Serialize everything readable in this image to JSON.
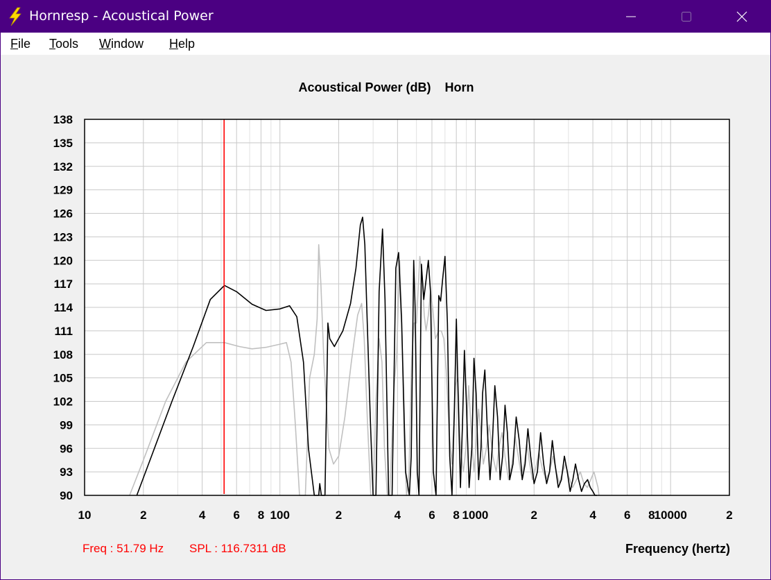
{
  "window": {
    "title": "Hornresp - Acoustical Power",
    "accent_color": "#4b0082",
    "icon": "lightning-bolt-icon"
  },
  "menu": {
    "file": {
      "underline": "F",
      "rest": "ile"
    },
    "tools": {
      "underline": "T",
      "rest": "ools"
    },
    "window": {
      "underline": "W",
      "rest": "indow"
    },
    "help": {
      "underline": "H",
      "rest": "elp"
    }
  },
  "chart_header": "Acoustical Power (dB)    Horn",
  "status": {
    "freq": "Freq : 51.79 Hz",
    "spl": "SPL : 116.7311 dB"
  },
  "x_axis_title": "Frequency (hertz)",
  "chart_data": {
    "type": "line",
    "x_scale": "log",
    "xlim": [
      10,
      20000
    ],
    "ylim": [
      90,
      138
    ],
    "y_ticks": [
      138,
      135,
      132,
      129,
      126,
      123,
      120,
      117,
      114,
      111,
      108,
      105,
      102,
      99,
      96,
      93,
      90
    ],
    "x_tick_labels": [
      {
        "value": 10,
        "label": "10"
      },
      {
        "value": 20,
        "label": "2"
      },
      {
        "value": 40,
        "label": "4"
      },
      {
        "value": 60,
        "label": "6"
      },
      {
        "value": 80,
        "label": "8"
      },
      {
        "value": 100,
        "label": "100"
      },
      {
        "value": 200,
        "label": "2"
      },
      {
        "value": 400,
        "label": "4"
      },
      {
        "value": 600,
        "label": "6"
      },
      {
        "value": 800,
        "label": "8"
      },
      {
        "value": 1000,
        "label": "1000"
      },
      {
        "value": 2000,
        "label": "2"
      },
      {
        "value": 4000,
        "label": "4"
      },
      {
        "value": 6000,
        "label": "6"
      },
      {
        "value": 8000,
        "label": "8"
      },
      {
        "value": 10000,
        "label": "10000"
      },
      {
        "value": 20000,
        "label": "2"
      }
    ],
    "grid": true,
    "cursor_freq": 51.79,
    "cursor_color": "#ff0000",
    "series": [
      {
        "color": "#000000",
        "points": [
          [
            18.5,
            90
          ],
          [
            22,
            95
          ],
          [
            28,
            102
          ],
          [
            36,
            109
          ],
          [
            44,
            115
          ],
          [
            52,
            116.8
          ],
          [
            60,
            116
          ],
          [
            72,
            114.4
          ],
          [
            85,
            113.6
          ],
          [
            100,
            113.8
          ],
          [
            112,
            114.2
          ],
          [
            122,
            112.8
          ],
          [
            132,
            107
          ],
          [
            140,
            96
          ],
          [
            150,
            90
          ],
          [
            158,
            90
          ],
          [
            160,
            91.5
          ],
          [
            163,
            90
          ],
          [
            170,
            90
          ],
          [
            176,
            112
          ],
          [
            180,
            110
          ],
          [
            190,
            109
          ],
          [
            210,
            111
          ],
          [
            230,
            114.5
          ],
          [
            245,
            119
          ],
          [
            258,
            124.5
          ],
          [
            265,
            125.5
          ],
          [
            272,
            122
          ],
          [
            280,
            112
          ],
          [
            290,
            100
          ],
          [
            300,
            90
          ],
          [
            310,
            90
          ],
          [
            322,
            116
          ],
          [
            335,
            124
          ],
          [
            345,
            115
          ],
          [
            360,
            90
          ],
          [
            375,
            90
          ],
          [
            392,
            119
          ],
          [
            405,
            121
          ],
          [
            420,
            112
          ],
          [
            440,
            93
          ],
          [
            460,
            90
          ],
          [
            470,
            95
          ],
          [
            484,
            120
          ],
          [
            492,
            114
          ],
          [
            505,
            93
          ],
          [
            515,
            90
          ],
          [
            530,
            119.5
          ],
          [
            545,
            115
          ],
          [
            560,
            117.5
          ],
          [
            575,
            120
          ],
          [
            590,
            116
          ],
          [
            610,
            93
          ],
          [
            630,
            90
          ],
          [
            650,
            115.5
          ],
          [
            665,
            114.8
          ],
          [
            680,
            117.5
          ],
          [
            700,
            120.5
          ],
          [
            720,
            112
          ],
          [
            740,
            95
          ],
          [
            760,
            90
          ],
          [
            780,
            100
          ],
          [
            800,
            112.5
          ],
          [
            815,
            104
          ],
          [
            840,
            91
          ],
          [
            860,
            99
          ],
          [
            880,
            108.5
          ],
          [
            900,
            102
          ],
          [
            930,
            91
          ],
          [
            960,
            96
          ],
          [
            985,
            107.5
          ],
          [
            1010,
            103
          ],
          [
            1040,
            92
          ],
          [
            1070,
            96
          ],
          [
            1090,
            103
          ],
          [
            1120,
            106
          ],
          [
            1150,
            99
          ],
          [
            1190,
            92
          ],
          [
            1220,
            96
          ],
          [
            1260,
            104
          ],
          [
            1300,
            100
          ],
          [
            1340,
            92
          ],
          [
            1380,
            95
          ],
          [
            1420,
            101.5
          ],
          [
            1460,
            98
          ],
          [
            1500,
            92
          ],
          [
            1560,
            94
          ],
          [
            1620,
            100
          ],
          [
            1680,
            97
          ],
          [
            1740,
            92
          ],
          [
            1800,
            94
          ],
          [
            1860,
            98.5
          ],
          [
            1920,
            95
          ],
          [
            2000,
            91.5
          ],
          [
            2080,
            93
          ],
          [
            2160,
            98
          ],
          [
            2240,
            94
          ],
          [
            2320,
            91.5
          ],
          [
            2400,
            93
          ],
          [
            2480,
            97
          ],
          [
            2560,
            94
          ],
          [
            2660,
            91
          ],
          [
            2760,
            92
          ],
          [
            2860,
            95
          ],
          [
            2960,
            93
          ],
          [
            3060,
            90.5
          ],
          [
            3160,
            92
          ],
          [
            3260,
            94
          ],
          [
            3380,
            92
          ],
          [
            3500,
            90.5
          ],
          [
            3620,
            91.5
          ],
          [
            3760,
            92
          ],
          [
            3880,
            91
          ],
          [
            4000,
            90.5
          ],
          [
            4100,
            90
          ],
          [
            4200,
            90
          ]
        ]
      },
      {
        "color": "#c0c0c0",
        "points": [
          [
            17,
            90
          ],
          [
            20,
            94.5
          ],
          [
            26,
            102
          ],
          [
            33,
            107
          ],
          [
            42,
            109.5
          ],
          [
            52,
            109.5
          ],
          [
            62,
            109
          ],
          [
            72,
            108.7
          ],
          [
            85,
            108.9
          ],
          [
            100,
            109.3
          ],
          [
            108,
            109.5
          ],
          [
            114,
            107
          ],
          [
            120,
            99
          ],
          [
            126,
            90
          ],
          [
            135,
            90
          ],
          [
            142,
            105
          ],
          [
            150,
            108
          ],
          [
            155,
            112.5
          ],
          [
            158,
            122
          ],
          [
            162,
            117
          ],
          [
            168,
            107
          ],
          [
            178,
            96
          ],
          [
            188,
            94
          ],
          [
            200,
            95
          ],
          [
            215,
            100
          ],
          [
            232,
            107
          ],
          [
            250,
            113
          ],
          [
            262,
            114.5
          ],
          [
            270,
            110
          ],
          [
            280,
            100
          ],
          [
            292,
            90
          ],
          [
            300,
            90
          ],
          [
            310,
            102
          ],
          [
            322,
            110
          ],
          [
            333,
            107
          ],
          [
            343,
            96
          ],
          [
            355,
            90
          ],
          [
            365,
            90
          ],
          [
            382,
            103
          ],
          [
            396,
            108
          ],
          [
            410,
            120
          ],
          [
            420,
            113
          ],
          [
            432,
            97
          ],
          [
            445,
            90
          ],
          [
            458,
            93
          ],
          [
            472,
            107
          ],
          [
            486,
            112
          ],
          [
            500,
            112
          ],
          [
            520,
            120.5
          ],
          [
            535,
            118
          ],
          [
            548,
            113
          ],
          [
            560,
            111
          ],
          [
            575,
            113
          ],
          [
            590,
            116
          ],
          [
            605,
            114
          ],
          [
            625,
            110
          ],
          [
            650,
            111
          ],
          [
            670,
            111
          ],
          [
            690,
            110
          ],
          [
            710,
            106
          ],
          [
            735,
            98
          ],
          [
            760,
            94
          ],
          [
            790,
            104
          ],
          [
            815,
            105
          ],
          [
            840,
            96
          ],
          [
            870,
            93
          ],
          [
            895,
            96
          ],
          [
            925,
            104
          ],
          [
            955,
            98
          ],
          [
            985,
            93
          ],
          [
            1015,
            97
          ],
          [
            1040,
            101
          ],
          [
            1070,
            98
          ],
          [
            1100,
            94
          ],
          [
            1140,
            96
          ],
          [
            1180,
            99
          ],
          [
            1230,
            95
          ],
          [
            1280,
            93
          ],
          [
            1320,
            96
          ],
          [
            1370,
            98
          ],
          [
            1420,
            95
          ],
          [
            1480,
            92
          ],
          [
            1540,
            94
          ],
          [
            1600,
            97.5
          ],
          [
            1660,
            95
          ],
          [
            1720,
            92.5
          ],
          [
            1780,
            94
          ],
          [
            1840,
            96.5
          ],
          [
            1900,
            94
          ],
          [
            1960,
            92
          ],
          [
            2040,
            93.5
          ],
          [
            2120,
            95.5
          ],
          [
            2200,
            93.5
          ],
          [
            2300,
            92
          ],
          [
            2400,
            93
          ],
          [
            2500,
            95
          ],
          [
            2600,
            93
          ],
          [
            2700,
            91.5
          ],
          [
            2800,
            93
          ],
          [
            2900,
            94
          ],
          [
            3000,
            92.5
          ],
          [
            3150,
            91
          ],
          [
            3300,
            92
          ],
          [
            3450,
            93
          ],
          [
            3600,
            91.5
          ],
          [
            3750,
            91
          ],
          [
            3900,
            92
          ],
          [
            4050,
            93
          ],
          [
            4150,
            92
          ],
          [
            4250,
            91
          ],
          [
            4300,
            90
          ]
        ]
      }
    ]
  }
}
